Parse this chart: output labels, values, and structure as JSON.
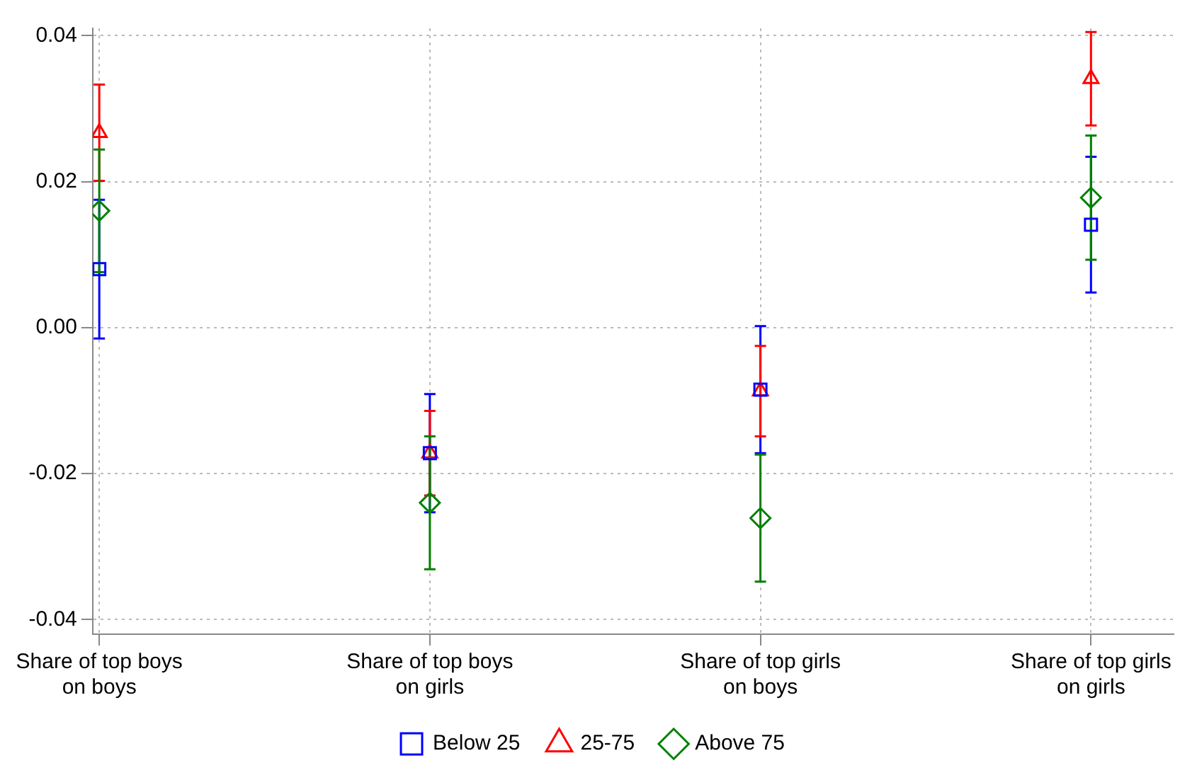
{
  "chart_data": {
    "type": "scatter",
    "categories": [
      "Share of top boys on boys",
      "Share of top boys on girls",
      "Share of top girls on boys",
      "Share of top girls on girls"
    ],
    "series": [
      {
        "name": "Below 25",
        "color": "#0000ff",
        "marker": "square",
        "values": [
          0.008,
          -0.0172,
          -0.0085,
          0.0141
        ],
        "errors": [
          0.0095,
          0.0081,
          0.0087,
          0.0093
        ]
      },
      {
        "name": "25-75",
        "color": "#ff0000",
        "marker": "triangle",
        "values": [
          0.0267,
          -0.0172,
          -0.0087,
          0.0341
        ],
        "errors": [
          0.0066,
          0.0058,
          0.0062,
          0.0064
        ]
      },
      {
        "name": "Above 75",
        "color": "#008000",
        "marker": "diamond",
        "values": [
          0.016,
          -0.024,
          -0.0261,
          0.0178
        ],
        "errors": [
          0.0084,
          0.0091,
          0.0087,
          0.0085
        ]
      }
    ],
    "ylim": [
      -0.042,
      0.041
    ],
    "yticks": [
      {
        "value": -0.04,
        "label": "-0.04"
      },
      {
        "value": -0.02,
        "label": "-0.02"
      },
      {
        "value": 0,
        "label": "0.00"
      },
      {
        "value": 0.02,
        "label": "0.02"
      },
      {
        "value": 0.04,
        "label": "0.04"
      }
    ],
    "grid": true,
    "legend": "bottom"
  }
}
